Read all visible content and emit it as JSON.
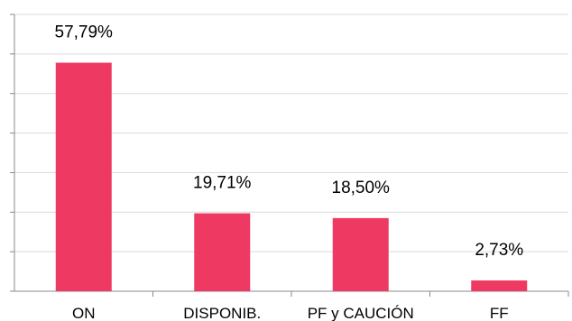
{
  "chart_data": {
    "type": "bar",
    "categories": [
      "ON",
      "DISPONIB.",
      "PF y CAUCIÓN",
      "FF"
    ],
    "values": [
      57.79,
      19.71,
      18.5,
      2.73
    ],
    "data_labels": [
      "57,79%",
      "19,71%",
      "18,50%",
      "2,73%"
    ],
    "ylim": [
      0,
      70
    ],
    "grid": true,
    "bar_color": "#ee3a62",
    "grid_color": "#d9d9d9",
    "axis_color": "#888888"
  }
}
